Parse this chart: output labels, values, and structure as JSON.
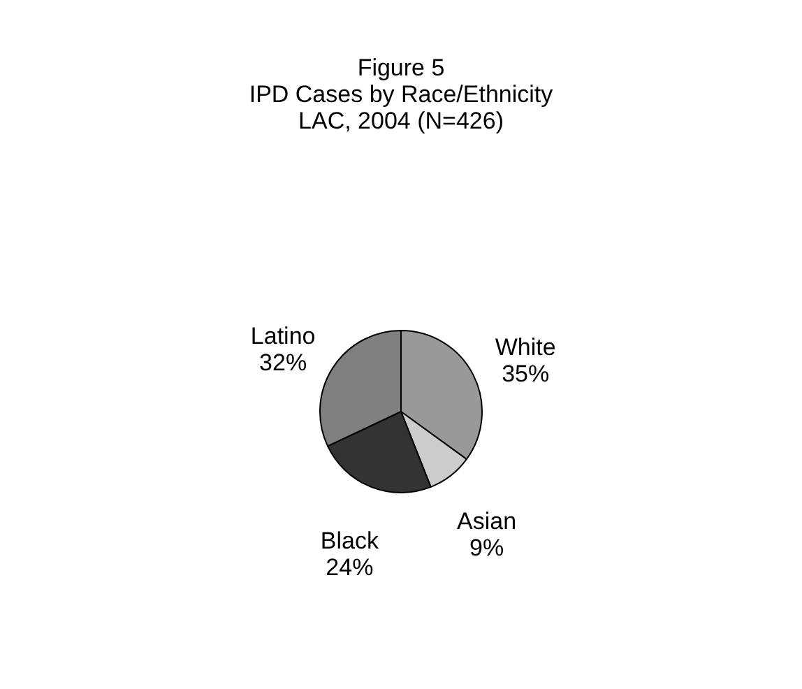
{
  "chart_data": {
    "type": "pie",
    "title": [
      "Figure 5",
      "IPD Cases by Race/Ethnicity",
      "LAC, 2004 (N=426)"
    ],
    "categories": [
      "White",
      "Asian",
      "Black",
      "Latino"
    ],
    "values": [
      35,
      9,
      24,
      32
    ],
    "value_labels": [
      "35%",
      "9%",
      "24%",
      "32%"
    ],
    "colors": [
      "#999999",
      "#cccccc",
      "#333333",
      "#808080"
    ],
    "legend": false
  }
}
